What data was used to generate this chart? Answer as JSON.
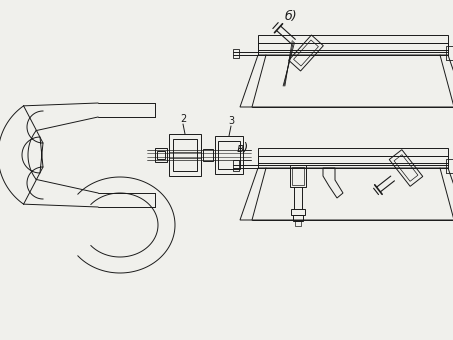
{
  "bg_color": "#f0f0ec",
  "line_color": "#1a1a1a",
  "label_b": "б)",
  "label_v": "в)",
  "label_2": "2",
  "label_3": "3",
  "figsize": [
    4.53,
    3.4
  ],
  "dpi": 100
}
